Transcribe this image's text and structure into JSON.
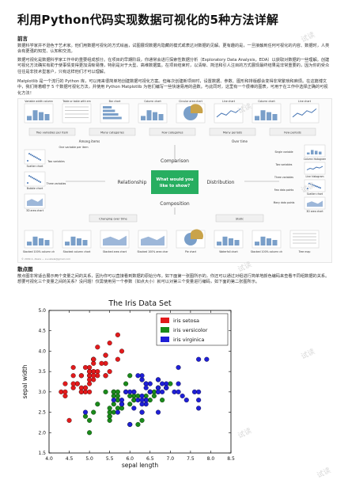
{
  "article": {
    "title": "利用Python代码实现数据可视化的5种方法详解",
    "sections": [
      {
        "heading": "前言"
      },
      {
        "heading": "散点图"
      }
    ],
    "paragraphs": [
      "数据科学家并不逊色于艺术家。他们用数据可视化的方式绘画，试图展现数据内隐藏的模式或表达对数据的见解。更有趣的是，一旦接触到任何可视化的内容、数据时，人类会有更强的知觉、认知和交流。",
      "数据可视化是数据科学家工作中的重要组成部分。在项目的早期阶段，你通常会进行探索性数据分析（Exploratory Data Analysis，EDA）以获取对数据的一些理解。创建可视化方法确实有助于使事情变得更加清晰易懂，特别是对于大型、高维数据集。在项目结束时，以清晰、简洁和引人注目的方式展现最终结果是非常重要的，因为你的受众往往是非技术型客户，只有这样他们才可以理解。",
      "Matplotlib 是一个流行的 Python 库，可以用来很简单地创建数据可视化方案。但每次创建新项目时，设置数据、参数、图形和排版都会变得非常繁琐和麻烦。在这篇博文中，我们将着眼于 5 个数据可视化方法，并使用 Python Matplotlib 为他们编写一些快速易用的函数。与此同时，这里有一个很棒的图表，可用于在工作中选择正确的可视化方法！",
      "散点图非常适合展示两个变量之间的关系，因为你可以直接看到数据的原始分布。如下面第一张图所示的，你还可以通过对组进行简单地颜色编码来查看不同组数据的关系。想要可视化三个变量之间的关系？没问题！仅需使用另一个参数（如点大小）就可以对第三个变量进行编码，如下面的第二张图所示。"
    ]
  },
  "chooser": {
    "center_question": [
      "What would you",
      "like to show?"
    ],
    "categories": [
      "Comparison",
      "Relationship",
      "Distribution",
      "Composition"
    ],
    "top_charts": [
      "Variable width column chart",
      "Table or table with embedded charts",
      "Bar chart",
      "Column chart",
      "Circular area chart",
      "Line chart",
      "Column chart",
      "Line chart"
    ],
    "top_branches": [
      "Two variables per item",
      "Many categories",
      "Few categories",
      "Many periods",
      "Few periods"
    ],
    "top_groups": [
      "Among items",
      "Over time"
    ],
    "mid_row_label": "One variable per item",
    "left_charts": [
      "Scatter chart",
      "Bubble chart",
      "3D area chart"
    ],
    "left_labels": [
      "Two variables",
      "Three variables"
    ],
    "right_charts": [
      "Column histogram",
      "Line histogram",
      "Scatter chart",
      "3D area chart"
    ],
    "right_labels": [
      "Single variable",
      "Two variables",
      "Three variables",
      "Few data points",
      "Many data points"
    ],
    "bottom_charts": [
      "Stacked 100% column chart",
      "Stacked column chart",
      "Stacked area chart",
      "Stacked 100% area chart",
      "Pie chart",
      "Waterfall chart",
      "Stacked 100% column chart",
      "Tree map"
    ],
    "bottom_labels": [
      "Changing over time",
      "Static"
    ],
    "footer": "© 2009 A. Abela — a.v.abela@gmail.com",
    "accent": "#27ae60"
  },
  "chart_data": {
    "type": "scatter",
    "title": "The Iris Data Set",
    "xlabel": "sepal length",
    "ylabel": "sepal width",
    "xlim": [
      4.0,
      8.5
    ],
    "ylim": [
      1.5,
      5.0
    ],
    "xticks": [
      "4.0",
      "4.5",
      "5.0",
      "5.5",
      "6.0",
      "6.5",
      "7.0",
      "7.5",
      "8.0",
      "8.5"
    ],
    "yticks": [
      "1.5",
      "2.0",
      "2.5",
      "3.0",
      "3.5",
      "4.0",
      "4.5",
      "5.0"
    ],
    "legend_position": "top-right",
    "grid": false,
    "series": [
      {
        "name": "iris setosa",
        "color": "#e31a1c",
        "points": [
          [
            5.1,
            3.5
          ],
          [
            4.9,
            3.0
          ],
          [
            4.7,
            3.2
          ],
          [
            4.6,
            3.1
          ],
          [
            5.0,
            3.6
          ],
          [
            5.4,
            3.9
          ],
          [
            4.6,
            3.4
          ],
          [
            5.0,
            3.4
          ],
          [
            4.4,
            2.9
          ],
          [
            4.9,
            3.1
          ],
          [
            5.4,
            3.7
          ],
          [
            4.8,
            3.4
          ],
          [
            4.8,
            3.0
          ],
          [
            4.3,
            3.0
          ],
          [
            5.8,
            4.0
          ],
          [
            5.7,
            4.4
          ],
          [
            5.4,
            3.9
          ],
          [
            5.1,
            3.5
          ],
          [
            5.7,
            3.8
          ],
          [
            5.1,
            3.8
          ],
          [
            5.4,
            3.4
          ],
          [
            5.1,
            3.7
          ],
          [
            4.6,
            3.6
          ],
          [
            5.1,
            3.3
          ],
          [
            4.8,
            3.4
          ],
          [
            5.0,
            3.0
          ],
          [
            5.0,
            3.4
          ],
          [
            5.2,
            3.5
          ],
          [
            5.2,
            3.4
          ],
          [
            4.7,
            3.2
          ],
          [
            4.8,
            3.1
          ],
          [
            5.4,
            3.4
          ],
          [
            5.2,
            4.1
          ],
          [
            5.5,
            4.2
          ],
          [
            4.9,
            3.1
          ],
          [
            5.0,
            3.2
          ],
          [
            5.5,
            3.5
          ],
          [
            4.9,
            3.6
          ],
          [
            4.4,
            3.0
          ],
          [
            5.1,
            3.4
          ],
          [
            5.0,
            3.5
          ],
          [
            4.5,
            2.3
          ],
          [
            4.4,
            3.2
          ],
          [
            5.0,
            3.5
          ],
          [
            5.1,
            3.8
          ],
          [
            4.8,
            3.0
          ],
          [
            5.1,
            3.8
          ],
          [
            4.6,
            3.2
          ],
          [
            5.3,
            3.7
          ],
          [
            5.0,
            3.3
          ]
        ]
      },
      {
        "name": "iris versicolor",
        "color": "#1a8a1a",
        "points": [
          [
            7.0,
            3.2
          ],
          [
            6.4,
            3.2
          ],
          [
            6.9,
            3.1
          ],
          [
            5.5,
            2.3
          ],
          [
            6.5,
            2.8
          ],
          [
            5.7,
            2.8
          ],
          [
            6.3,
            3.3
          ],
          [
            4.9,
            2.4
          ],
          [
            6.6,
            2.9
          ],
          [
            5.2,
            2.7
          ],
          [
            5.0,
            2.0
          ],
          [
            5.9,
            3.0
          ],
          [
            6.0,
            2.2
          ],
          [
            6.1,
            2.9
          ],
          [
            5.6,
            2.9
          ],
          [
            6.7,
            3.1
          ],
          [
            5.6,
            3.0
          ],
          [
            5.8,
            2.7
          ],
          [
            6.2,
            2.2
          ],
          [
            5.6,
            2.5
          ],
          [
            5.9,
            3.2
          ],
          [
            6.1,
            2.8
          ],
          [
            6.3,
            2.5
          ],
          [
            6.1,
            2.8
          ],
          [
            6.4,
            2.9
          ],
          [
            6.6,
            3.0
          ],
          [
            6.8,
            2.8
          ],
          [
            6.7,
            3.0
          ],
          [
            6.0,
            2.9
          ],
          [
            5.7,
            2.6
          ],
          [
            5.5,
            2.4
          ],
          [
            5.5,
            2.4
          ],
          [
            5.8,
            2.7
          ],
          [
            6.0,
            2.7
          ],
          [
            5.4,
            3.0
          ],
          [
            6.0,
            3.4
          ],
          [
            6.7,
            3.1
          ],
          [
            6.3,
            2.3
          ],
          [
            5.6,
            3.0
          ],
          [
            5.5,
            2.5
          ],
          [
            5.5,
            2.6
          ],
          [
            6.1,
            3.0
          ],
          [
            5.8,
            2.6
          ],
          [
            5.0,
            2.3
          ],
          [
            5.6,
            2.7
          ],
          [
            5.7,
            3.0
          ],
          [
            5.7,
            2.9
          ],
          [
            6.2,
            2.9
          ],
          [
            5.1,
            2.5
          ],
          [
            5.7,
            2.8
          ]
        ]
      },
      {
        "name": "iris virginica",
        "color": "#1f1fd6",
        "points": [
          [
            6.3,
            3.3
          ],
          [
            5.8,
            2.7
          ],
          [
            7.1,
            3.0
          ],
          [
            6.3,
            2.9
          ],
          [
            6.5,
            3.0
          ],
          [
            7.6,
            3.0
          ],
          [
            4.9,
            2.5
          ],
          [
            7.3,
            2.9
          ],
          [
            6.7,
            2.5
          ],
          [
            7.2,
            3.6
          ],
          [
            6.5,
            3.2
          ],
          [
            6.4,
            2.7
          ],
          [
            6.8,
            3.0
          ],
          [
            5.7,
            2.5
          ],
          [
            5.8,
            2.8
          ],
          [
            6.4,
            3.2
          ],
          [
            6.5,
            3.0
          ],
          [
            7.7,
            3.8
          ],
          [
            7.7,
            2.6
          ],
          [
            6.0,
            2.2
          ],
          [
            6.9,
            3.2
          ],
          [
            5.6,
            2.8
          ],
          [
            7.7,
            2.8
          ],
          [
            6.3,
            2.7
          ],
          [
            6.7,
            3.3
          ],
          [
            7.2,
            3.2
          ],
          [
            6.2,
            2.8
          ],
          [
            6.1,
            3.0
          ],
          [
            6.4,
            2.8
          ],
          [
            7.2,
            3.0
          ],
          [
            7.4,
            2.8
          ],
          [
            7.9,
            3.8
          ],
          [
            6.4,
            2.8
          ],
          [
            6.3,
            2.8
          ],
          [
            6.1,
            2.6
          ],
          [
            7.7,
            3.0
          ],
          [
            6.3,
            3.4
          ],
          [
            6.4,
            3.1
          ],
          [
            6.0,
            3.0
          ],
          [
            6.9,
            3.1
          ],
          [
            6.7,
            3.1
          ],
          [
            6.9,
            3.1
          ],
          [
            5.8,
            2.7
          ],
          [
            6.8,
            3.2
          ],
          [
            6.7,
            3.3
          ],
          [
            6.7,
            3.0
          ],
          [
            6.3,
            2.5
          ],
          [
            6.5,
            3.0
          ],
          [
            6.2,
            3.4
          ],
          [
            5.9,
            3.0
          ]
        ]
      }
    ]
  },
  "watermark": "试读"
}
